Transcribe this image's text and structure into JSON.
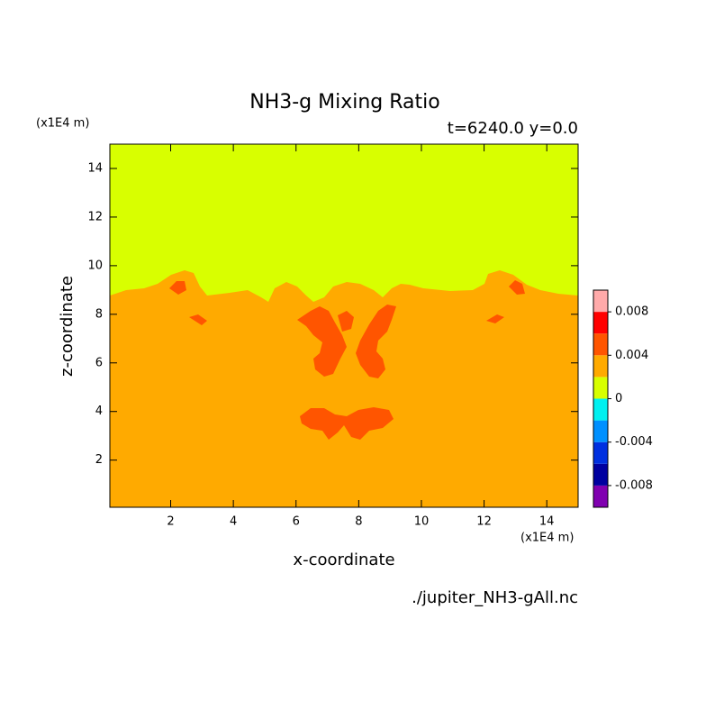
{
  "chart_data": {
    "type": "contour",
    "title": "NH3-g Mixing Ratio",
    "subtitle": "t=6240.0 y=0.0",
    "x_label": "x-coordinate",
    "y_label": "z-coordinate",
    "x_unit": "(x1E4 m)",
    "y_unit": "(x1E4 m)",
    "footer": "./jupiter_NH3-gAll.nc",
    "xlim": [
      0.06,
      15
    ],
    "xticks": [
      2,
      4,
      6,
      8,
      10,
      12,
      14
    ],
    "ylim": [
      0.06,
      15
    ],
    "yticks": [
      2,
      4,
      6,
      8,
      10,
      12,
      14
    ],
    "colorbar": {
      "levels": [
        -0.01,
        -0.008,
        -0.006,
        -0.004,
        -0.002,
        0,
        0.002,
        0.004,
        0.006,
        0.008,
        0.01
      ],
      "colors": [
        "#8000b0",
        "#0000a0",
        "#0030e0",
        "#0090ff",
        "#00f0f0",
        "#d8ff00",
        "#ffaa00",
        "#ff5500",
        "#ff0000",
        "#ffaaaa"
      ],
      "ticks": [
        -0.008,
        -0.004,
        0,
        0.004,
        0.008
      ]
    }
  }
}
